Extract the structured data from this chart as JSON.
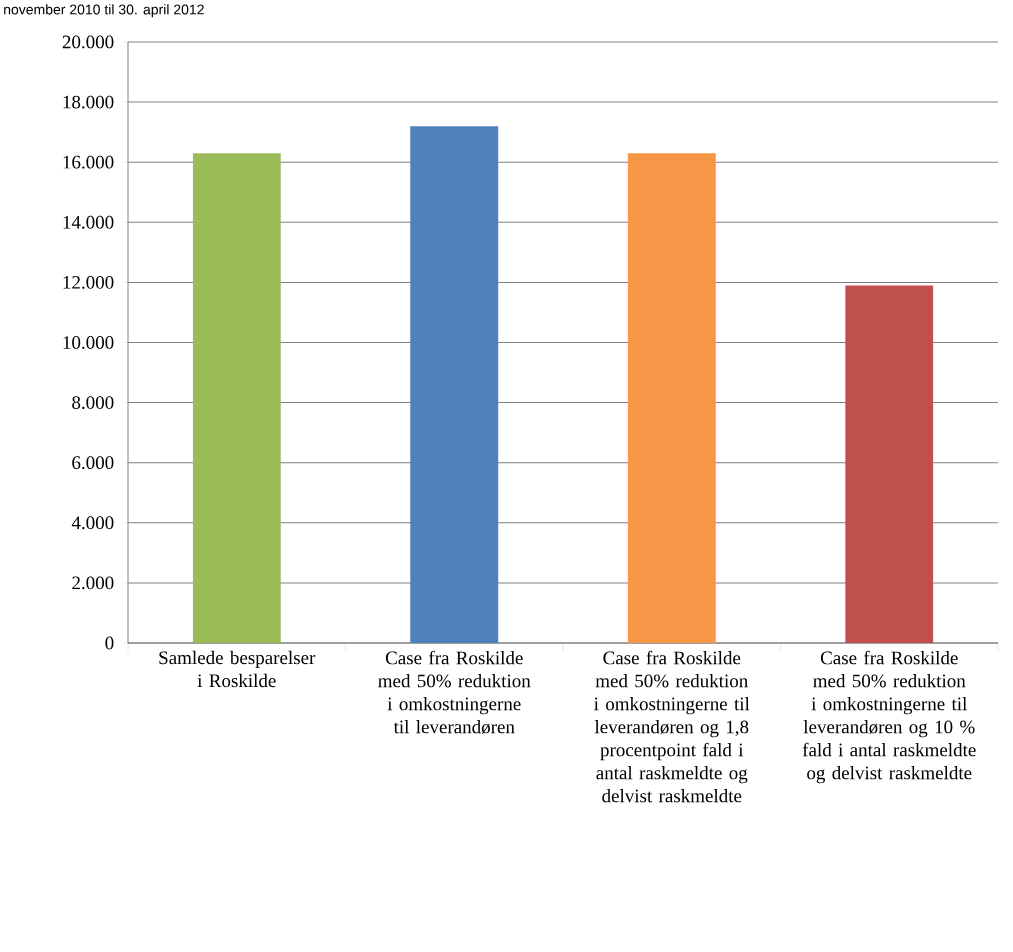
{
  "chart_data": {
    "type": "bar",
    "title": "november 2010 til 30. april 2012",
    "categories": [
      "Samlede besparelser i Roskilde",
      "Case fra Roskilde med 50% reduktion i omkostningerne til leverandøren",
      "Case fra Roskilde med 50% reduktion i omkostningerne til leverandøren og 1,8 procentpoint fald i antal raskmeldte og delvist raskmeldte",
      "Case fra Roskilde med 50% reduktion i omkostningerne til leverandøren og 10 % fald i antal raskmeldte og delvist raskmeldte"
    ],
    "values": [
      16300,
      17200,
      16300,
      11900
    ],
    "colors": [
      "#9bbb59",
      "#4f81bd",
      "#f79646",
      "#c0504d"
    ],
    "ylim": [
      0,
      20000
    ],
    "yticks": [
      {
        "value": 0,
        "label": "0"
      },
      {
        "value": 2000,
        "label": "2.000"
      },
      {
        "value": 4000,
        "label": "4.000"
      },
      {
        "value": 6000,
        "label": "6.000"
      },
      {
        "value": 8000,
        "label": "8.000"
      },
      {
        "value": 10000,
        "label": "10.000"
      },
      {
        "value": 12000,
        "label": "12.000"
      },
      {
        "value": 14000,
        "label": "14.000"
      },
      {
        "value": 16000,
        "label": "16.000"
      },
      {
        "value": 18000,
        "label": "18.000"
      },
      {
        "value": 20000,
        "label": "20.000"
      }
    ],
    "grid": "y"
  }
}
